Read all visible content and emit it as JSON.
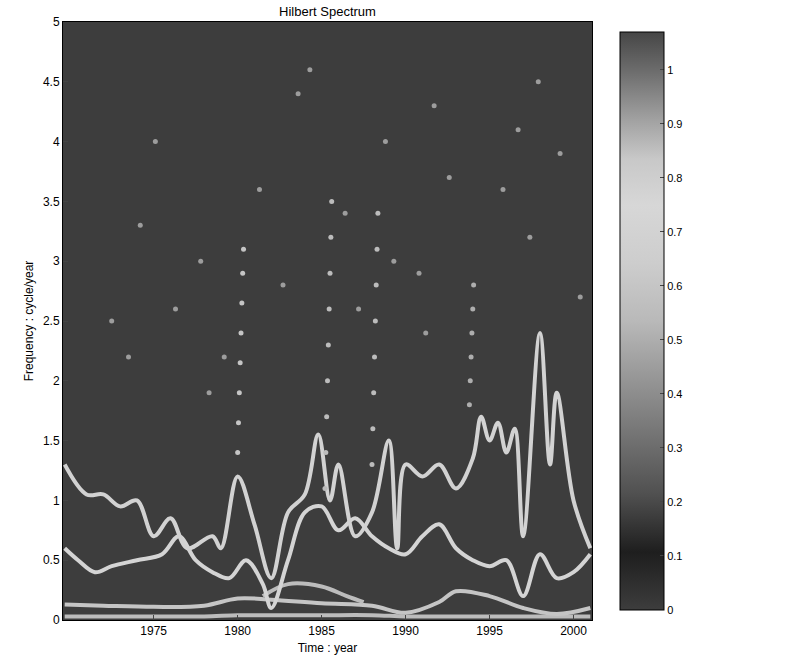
{
  "chart_data": {
    "type": "scatter",
    "title": "Hilbert Spectrum",
    "x_label": "Time : year",
    "y_label": "Frequency : cycle/year",
    "xlim": [
      1969.6,
      2001.1
    ],
    "xticks": [
      1975,
      1980,
      1985,
      1990,
      1995,
      2000
    ],
    "ylim": [
      0,
      5
    ],
    "yticks": [
      0,
      0.5,
      1,
      1.5,
      2,
      2.5,
      3,
      3.5,
      4,
      4.5,
      5
    ],
    "grid": false,
    "colorbar": {
      "range": [
        0,
        1.07
      ],
      "ticks": [
        0,
        0.1,
        0.2,
        0.3,
        0.4,
        0.5,
        0.6,
        0.7,
        0.8,
        0.9,
        1
      ]
    },
    "series": [
      {
        "type": "line",
        "amplitude": 0.55,
        "x": [
          1969.7,
          1972,
          1975,
          1978,
          1980,
          1982,
          1985,
          1988,
          1990,
          1992,
          1993,
          1995,
          1997,
          1999,
          2001
        ],
        "values": [
          0.03,
          0.03,
          0.03,
          0.03,
          0.04,
          0.04,
          0.04,
          0.04,
          0.03,
          0.03,
          0.03,
          0.03,
          0.03,
          0.03,
          0.03
        ]
      },
      {
        "type": "line",
        "amplitude": 0.6,
        "x": [
          1969.7,
          1972,
          1975,
          1978,
          1980,
          1982,
          1985,
          1988,
          1990,
          1992,
          1993,
          1995,
          1997,
          1999,
          2001
        ],
        "values": [
          0.13,
          0.12,
          0.11,
          0.12,
          0.18,
          0.17,
          0.14,
          0.12,
          0.06,
          0.15,
          0.24,
          0.2,
          0.1,
          0.05,
          0.1
        ]
      },
      {
        "type": "line",
        "amplitude": 0.55,
        "x": [
          1981.5,
          1983,
          1985,
          1986.5,
          1987.5
        ],
        "values": [
          0.2,
          0.3,
          0.28,
          0.2,
          0.15
        ]
      },
      {
        "type": "line",
        "amplitude": 0.72,
        "x": [
          1969.7,
          1970.5,
          1971.5,
          1972.5,
          1974,
          1975.5,
          1976.5,
          1977.5,
          1978.5,
          1979.5,
          1980.5,
          1981.5,
          1982,
          1983,
          1984,
          1985,
          1986,
          1987,
          1988,
          1989,
          1990,
          1991,
          1992,
          1993,
          1994,
          1995,
          1996,
          1997,
          1998,
          1999,
          2000,
          2001
        ],
        "values": [
          0.6,
          0.5,
          0.4,
          0.45,
          0.5,
          0.55,
          0.7,
          0.5,
          0.4,
          0.35,
          0.5,
          0.3,
          0.1,
          0.5,
          0.9,
          0.95,
          0.75,
          0.85,
          0.7,
          0.6,
          0.55,
          0.7,
          0.8,
          0.6,
          0.5,
          0.45,
          0.5,
          0.2,
          0.55,
          0.35,
          0.4,
          0.55
        ]
      },
      {
        "type": "line",
        "amplitude": 0.7,
        "x": [
          1969.7,
          1971,
          1972,
          1973,
          1974,
          1975,
          1976,
          1977,
          1978.5,
          1979,
          1980,
          1981,
          1982,
          1983,
          1984,
          1984.8,
          1985.5,
          1986,
          1987,
          1988,
          1989,
          1989.5,
          1990,
          1991,
          1992,
          1993,
          1994,
          1994.5,
          1995,
          1995.5,
          1996,
          1996.5,
          1997,
          1998,
          1998.6,
          1999,
          2000,
          2001
        ],
        "values": [
          1.3,
          1.05,
          1.05,
          0.95,
          1.0,
          0.7,
          0.85,
          0.6,
          0.7,
          0.6,
          1.2,
          0.8,
          0.35,
          0.9,
          1.05,
          1.55,
          1.0,
          1.3,
          0.7,
          0.9,
          1.5,
          0.6,
          1.3,
          1.2,
          1.3,
          1.1,
          1.35,
          1.7,
          1.5,
          1.65,
          1.4,
          1.6,
          0.7,
          2.4,
          1.3,
          1.9,
          1.0,
          0.6
        ]
      },
      {
        "type": "scatter",
        "amplitude": 0.6,
        "x": [
          1980.0,
          1980.05,
          1980.1,
          1980.15,
          1980.2,
          1980.25,
          1980.3,
          1980.35
        ],
        "values": [
          1.4,
          1.65,
          1.9,
          2.15,
          2.4,
          2.65,
          2.9,
          3.1
        ]
      },
      {
        "type": "scatter",
        "amplitude": 0.55,
        "x": [
          1985.2,
          1985.25,
          1985.3,
          1985.35,
          1985.4,
          1985.45,
          1985.5,
          1985.55,
          1985.6
        ],
        "values": [
          1.1,
          1.4,
          1.7,
          2.0,
          2.3,
          2.6,
          2.9,
          3.2,
          3.5
        ]
      },
      {
        "type": "scatter",
        "amplitude": 0.55,
        "x": [
          1988.0,
          1988.05,
          1988.1,
          1988.15,
          1988.2,
          1988.25,
          1988.3,
          1988.35
        ],
        "values": [
          1.3,
          1.6,
          1.9,
          2.2,
          2.5,
          2.8,
          3.1,
          3.4
        ]
      },
      {
        "type": "scatter",
        "amplitude": 0.5,
        "x": [
          1993.8,
          1993.85,
          1993.9,
          1993.95,
          1994.0,
          1994.05
        ],
        "values": [
          1.8,
          2.0,
          2.2,
          2.4,
          2.6,
          2.8
        ]
      },
      {
        "type": "scatter",
        "amplitude": 0.45,
        "x": [
          1972.5,
          1973.5,
          1974.2,
          1975.1,
          1976.3,
          1977.8,
          1979.2,
          1981.3,
          1982.7,
          1983.6,
          1986.4,
          1987.2,
          1989.3,
          1990.8,
          1991.7,
          1992.6,
          1995.8,
          1996.7,
          1997.4,
          1999.2,
          2000.4,
          1978.3,
          1984.3,
          1988.8,
          1991.2,
          1997.9
        ],
        "values": [
          2.5,
          2.2,
          3.3,
          4.0,
          2.6,
          3.0,
          2.2,
          3.6,
          2.8,
          4.4,
          3.4,
          2.6,
          3.0,
          2.9,
          4.3,
          3.7,
          3.6,
          4.1,
          3.2,
          3.9,
          2.7,
          1.9,
          4.6,
          4.0,
          2.4,
          4.5
        ]
      }
    ]
  }
}
